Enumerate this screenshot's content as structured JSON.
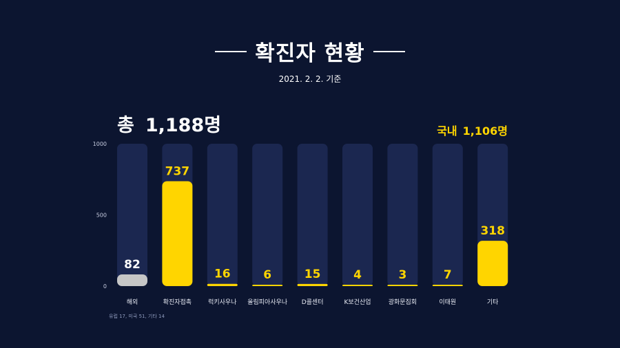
{
  "header": {
    "title": "확진자 현황",
    "date": "2021. 2. 2. 기준"
  },
  "summary": {
    "total_label": "총",
    "total_value": "1,188명",
    "domestic_label": "국내",
    "domestic_value": "1,106명"
  },
  "footnote": "유럽 17, 미국 51, 기타 14",
  "colors": {
    "background": "#0c1530",
    "bar_track": "#1b2750",
    "highlight": "#ffd500",
    "overseas": "#c6c6c6"
  },
  "chart_data": {
    "type": "bar",
    "categories": [
      "해외",
      "확진자접촉",
      "럭키사우나",
      "올림피아사우나",
      "D콜센터",
      "K보건산업",
      "광화문집회",
      "이태원",
      "기타"
    ],
    "values": [
      82,
      737,
      16,
      6,
      15,
      4,
      3,
      7,
      318
    ],
    "value_labels": [
      "82",
      "737",
      "16",
      "6",
      "15",
      "4",
      "3",
      "7",
      "318"
    ],
    "ylim": [
      0,
      1000
    ],
    "yticks": [
      0,
      500,
      1000
    ],
    "ytick_labels": [
      "0",
      "500",
      "1000"
    ],
    "bar_colors": [
      "#c6c6c6",
      "#ffd500",
      "#ffd500",
      "#ffd500",
      "#ffd500",
      "#ffd500",
      "#ffd500",
      "#ffd500",
      "#ffd500"
    ],
    "title": "확진자 현황",
    "xlabel": "",
    "ylabel": "",
    "grid": false
  }
}
